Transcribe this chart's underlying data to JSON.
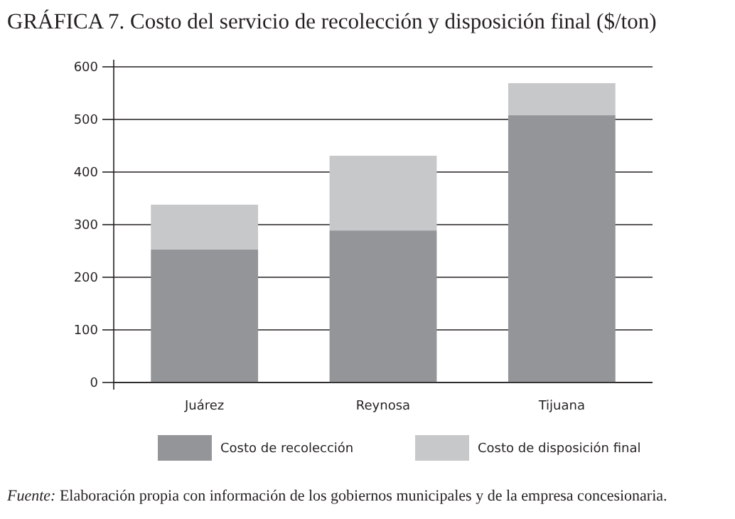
{
  "chart_data": {
    "type": "bar",
    "title": "GRÁFICA 7. Costo del servicio de recolección y disposición final ($/ton)",
    "categories": [
      "Juárez",
      "Reynosa",
      "Tijuana"
    ],
    "stacked": true,
    "series": [
      {
        "name": "Costo de recolección",
        "color": "#939598",
        "values": [
          253,
          289,
          508
        ]
      },
      {
        "name": "Costo de disposición final",
        "color": "#c7c8ca",
        "values": [
          85,
          142,
          61
        ]
      }
    ],
    "ylim": [
      0,
      600
    ],
    "yticks": [
      0,
      100,
      200,
      300,
      400,
      500,
      600
    ],
    "grid": "y",
    "legend": "bottom",
    "annotations": [
      "Fuente: Elaboración propia con información de los gobiernos municipales y de la empresa concesionaria."
    ]
  }
}
